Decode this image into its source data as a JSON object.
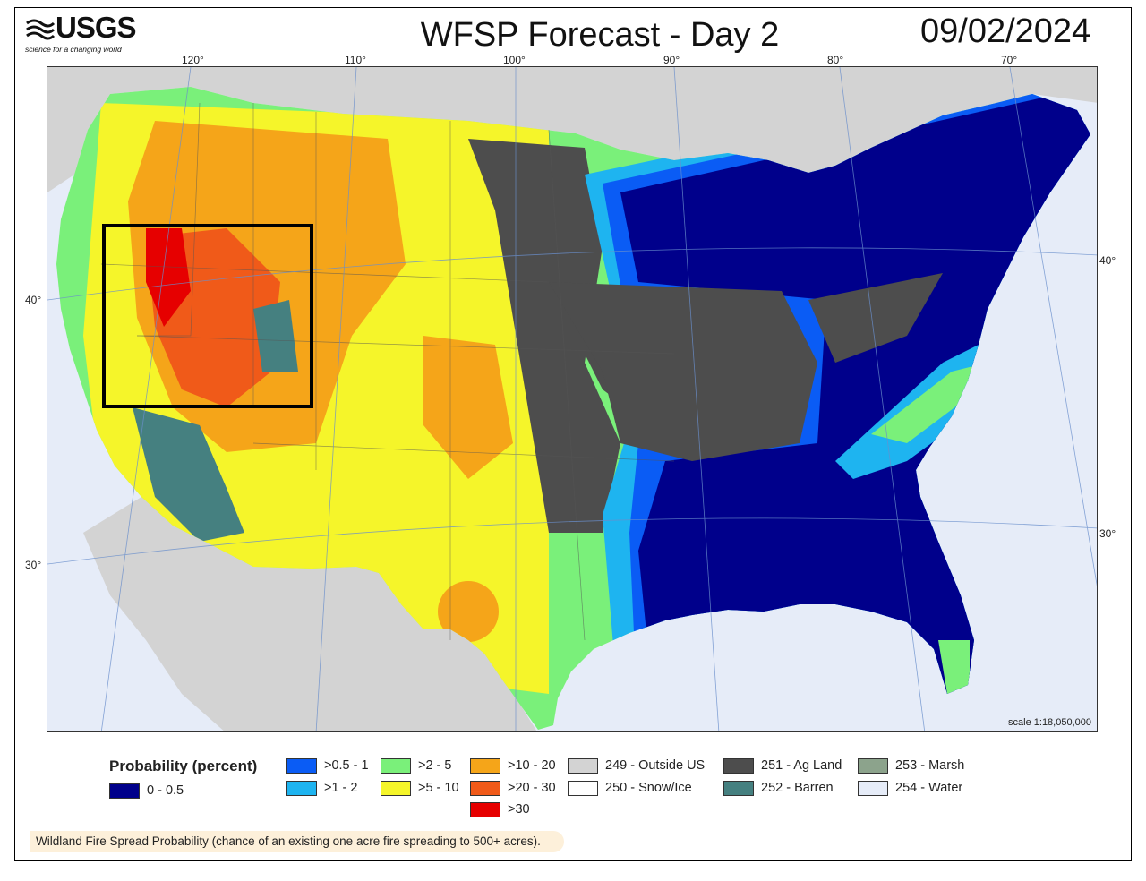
{
  "header": {
    "logo_text": "USGS",
    "logo_tagline": "science for a changing world",
    "title": "WFSP Forecast - Day 2",
    "date": "09/02/2024"
  },
  "map": {
    "longitude_labels": [
      "120°",
      "110°",
      "100°",
      "90°",
      "80°",
      "70°"
    ],
    "latitude_labels_left": [
      "40°",
      "30°"
    ],
    "latitude_labels_right": [
      "40°",
      "30°"
    ],
    "scale": "scale 1:18,050,000",
    "highlight_box": "outlined region over the Great Basin (Nevada / Utah / Idaho)"
  },
  "legend": {
    "title": "Probability (percent)",
    "items": [
      {
        "label": "0 - 0.5",
        "color": "#00008b"
      },
      {
        "label": ">0.5 - 1",
        "color": "#0a5cf5"
      },
      {
        "label": ">1 - 2",
        "color": "#1eb4f0"
      },
      {
        "label": ">2 - 5",
        "color": "#7af07a"
      },
      {
        "label": ">5 - 10",
        "color": "#f5f52a"
      },
      {
        "label": ">10 - 20",
        "color": "#f5a519"
      },
      {
        "label": ">20 - 30",
        "color": "#f05a19"
      },
      {
        "label": ">30",
        "color": "#e60000"
      },
      {
        "label": "249 - Outside US",
        "color": "#d3d3d3"
      },
      {
        "label": "250 - Snow/Ice",
        "color": "#ffffff"
      },
      {
        "label": "251 - Ag Land",
        "color": "#4d4d4d"
      },
      {
        "label": "252 - Barren",
        "color": "#458080"
      },
      {
        "label": "253 - Marsh",
        "color": "#8ca38c"
      },
      {
        "label": "254 - Water",
        "color": "#e6ecf8"
      }
    ]
  },
  "caption": "Wildland Fire Spread Probability (chance of an existing one acre fire spreading to 500+ acres)."
}
